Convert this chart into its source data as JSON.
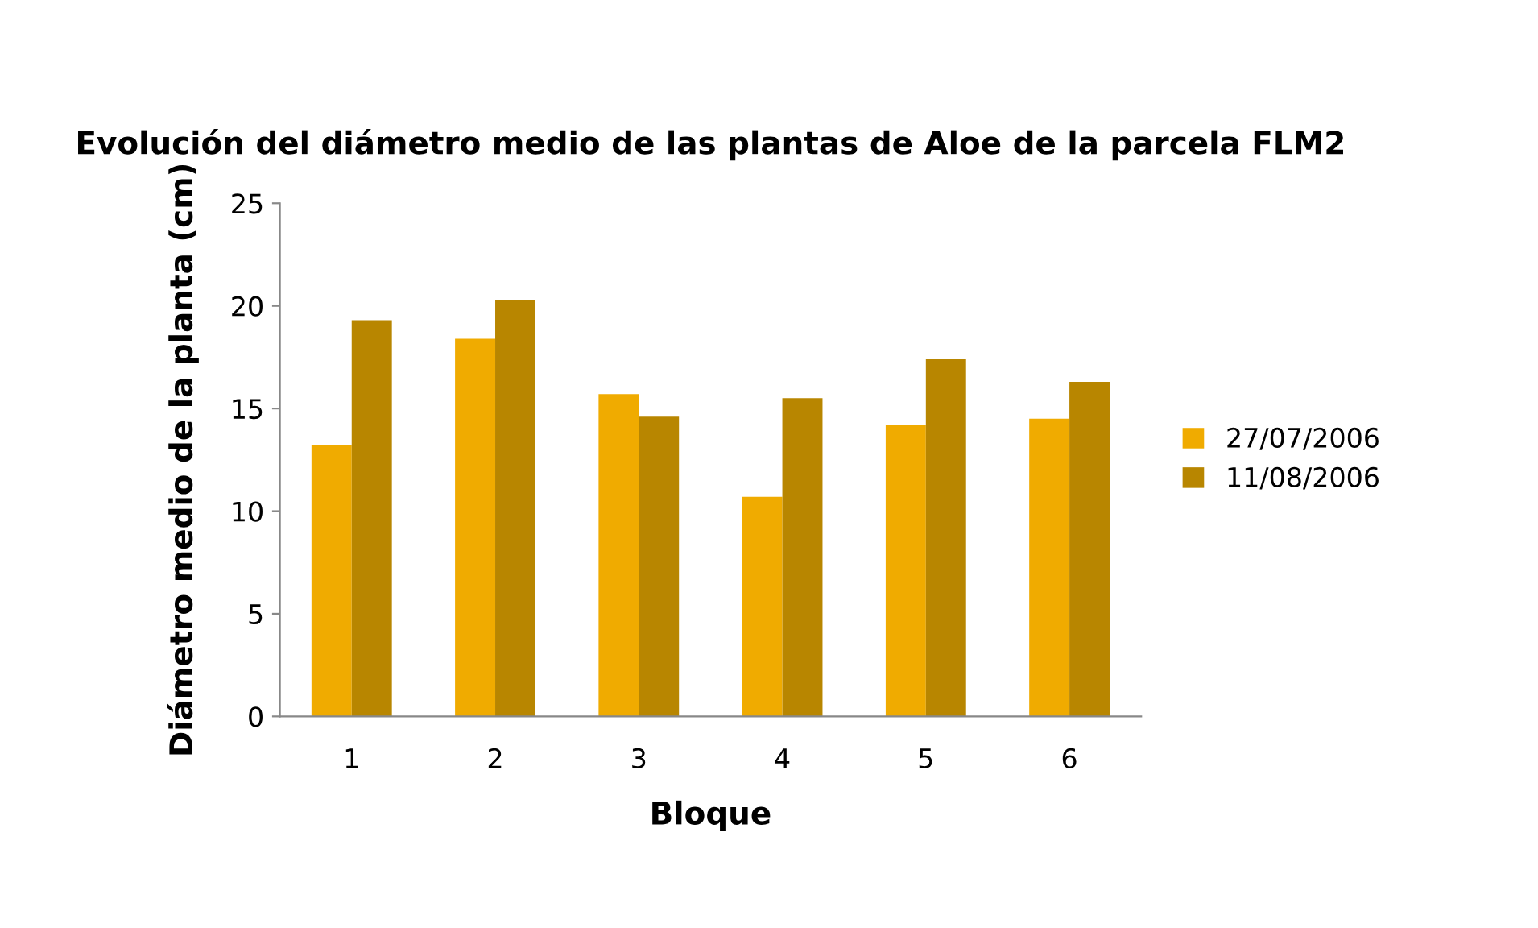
{
  "chart_data": {
    "type": "bar",
    "title": "Evolución del diámetro medio de las plantas de Aloe de la parcela FLM2",
    "xlabel": "Bloque",
    "ylabel": "Diámetro medio de la planta (cm)",
    "categories": [
      "1",
      "2",
      "3",
      "4",
      "5",
      "6"
    ],
    "series": [
      {
        "name": "27/07/2006",
        "color": "#f0ab00",
        "values": [
          13.2,
          18.4,
          15.7,
          10.7,
          14.2,
          14.5
        ]
      },
      {
        "name": "11/08/2006",
        "color": "#b88600",
        "values": [
          19.3,
          20.3,
          14.6,
          15.5,
          17.4,
          16.3
        ]
      }
    ],
    "ylim": [
      0,
      25
    ],
    "yticks": [
      0,
      5,
      10,
      15,
      20,
      25
    ],
    "grid": false,
    "legend": "right"
  }
}
